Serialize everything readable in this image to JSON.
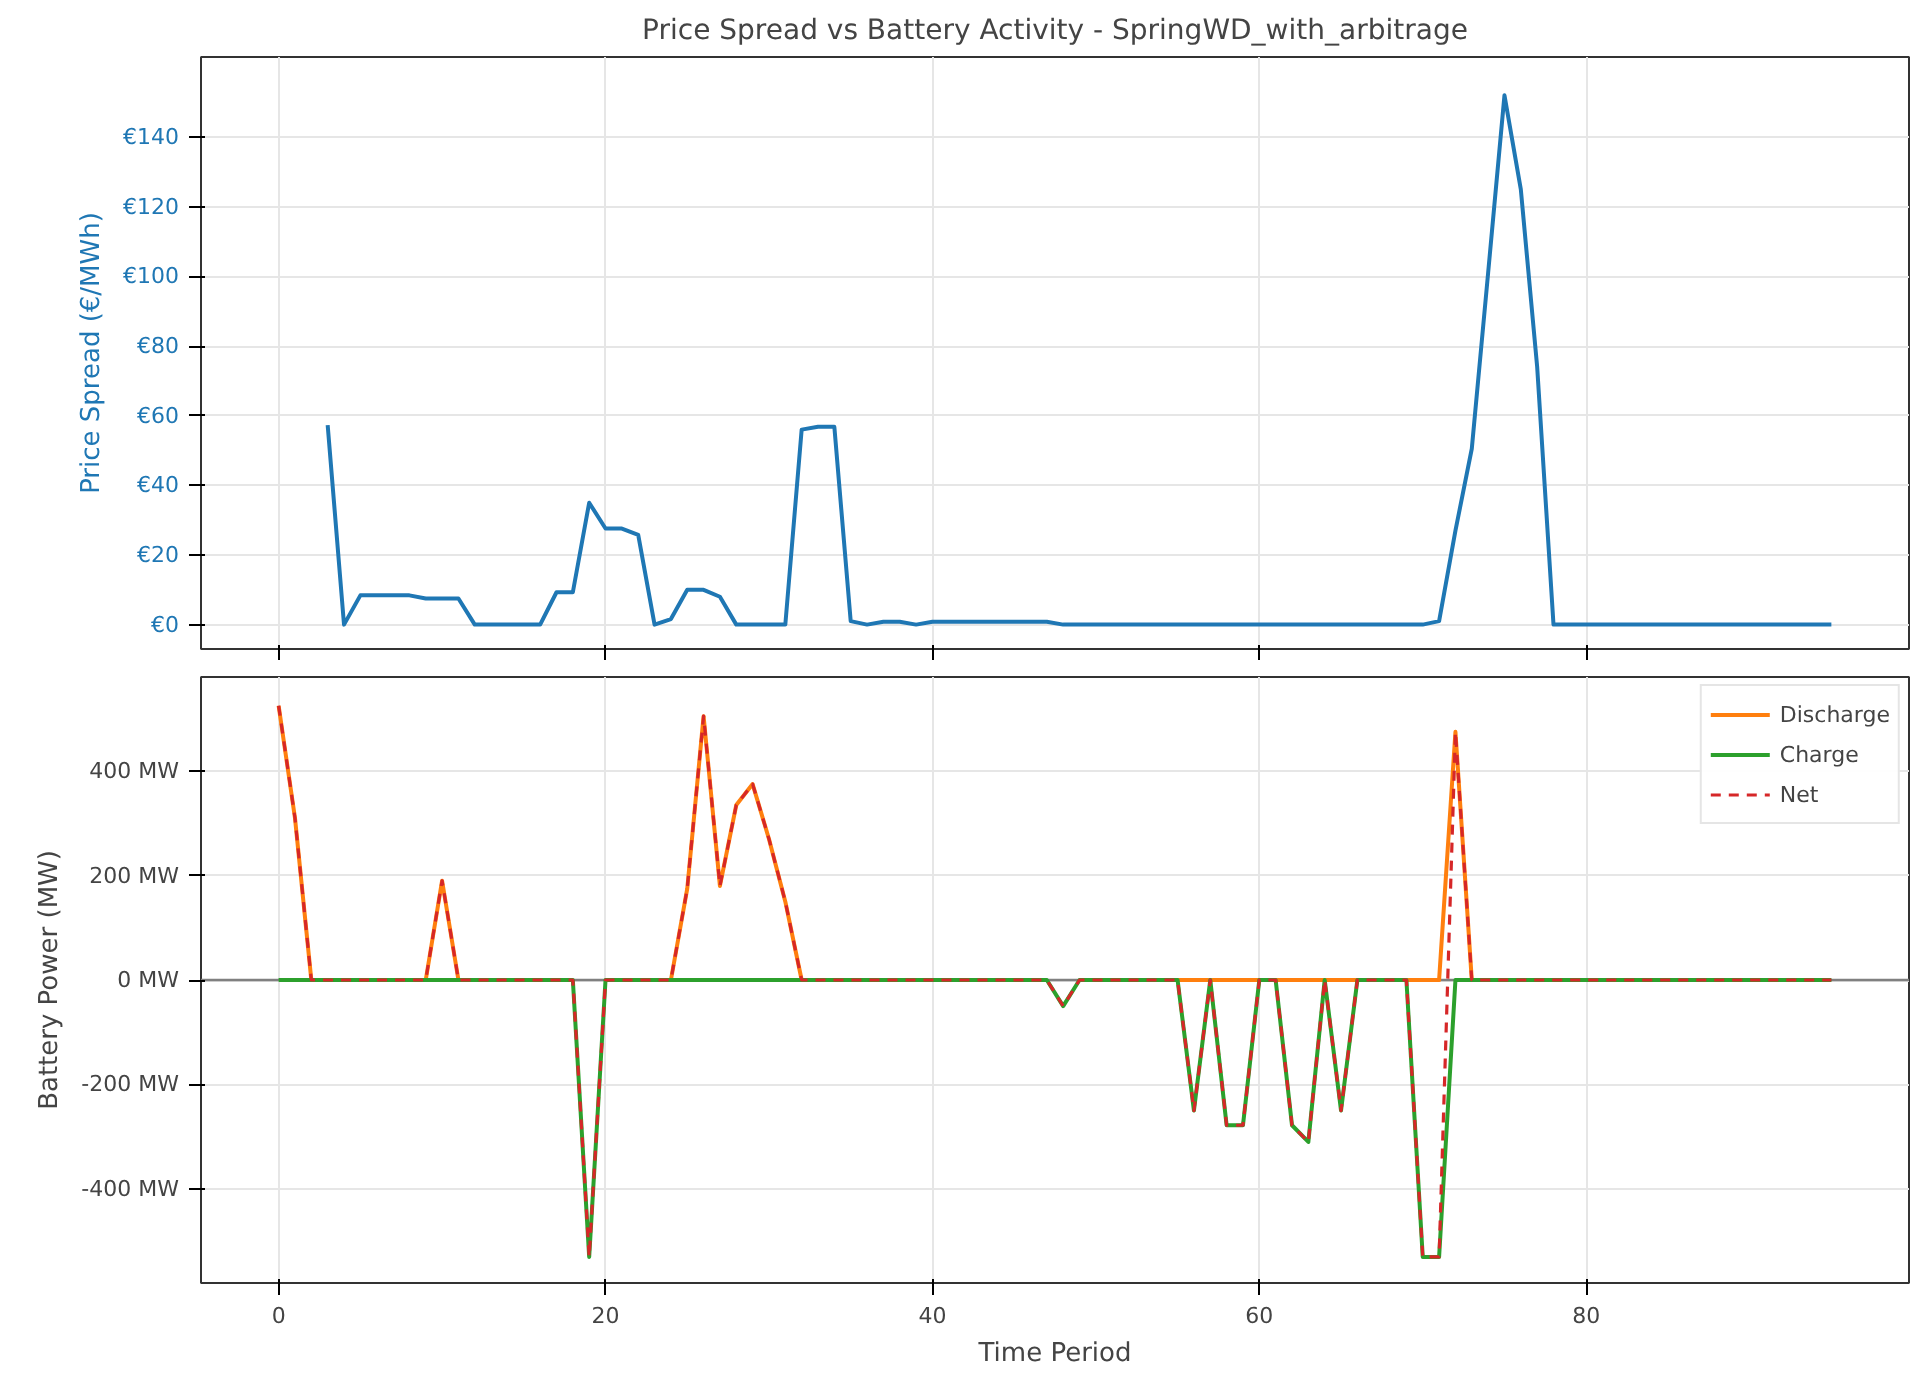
{
  "chart_data": [
    {
      "type": "line",
      "title": "Price Spread vs Battery Activity - SpringWD_with_arbitrage",
      "ylabel": "Price Spread (€/MWh)",
      "x": [
        3,
        4,
        5,
        6,
        7,
        8,
        9,
        10,
        11,
        12,
        13,
        14,
        15,
        16,
        17,
        18,
        19,
        20,
        21,
        22,
        23,
        24,
        25,
        26,
        27,
        28,
        29,
        30,
        31,
        32,
        33,
        34,
        35,
        36,
        37,
        38,
        39,
        40,
        41,
        42,
        43,
        44,
        45,
        46,
        47,
        48,
        49,
        50,
        51,
        52,
        53,
        54,
        55,
        56,
        57,
        58,
        59,
        60,
        61,
        62,
        63,
        64,
        65,
        66,
        67,
        68,
        69,
        70,
        71,
        72,
        73,
        74,
        75,
        76,
        77,
        78,
        79,
        80,
        81,
        82,
        83,
        84,
        85,
        86,
        87,
        88,
        89,
        90,
        91,
        92,
        93,
        94,
        95
      ],
      "series": [
        {
          "color": "#1f77b4",
          "values": [
            57.3,
            0,
            8.4,
            8.4,
            8.4,
            8.4,
            7.5,
            7.5,
            7.5,
            0,
            0,
            0,
            0,
            0,
            9.3,
            9.3,
            35,
            27.6,
            27.6,
            25.8,
            0,
            1.6,
            10,
            10,
            8,
            0,
            0,
            0,
            0,
            56,
            56.8,
            56.8,
            1,
            0,
            0.8,
            0.8,
            0,
            0.8,
            0.8,
            0.8,
            0.8,
            0.8,
            0.8,
            0.8,
            0.8,
            0,
            0,
            0,
            0,
            0,
            0,
            0,
            0,
            0,
            0,
            0,
            0,
            0,
            0,
            0,
            0,
            0,
            0,
            0,
            0,
            0,
            0,
            0,
            1,
            27,
            50.5,
            101,
            152,
            125,
            74,
            0,
            0,
            0,
            0,
            0,
            0,
            0,
            0,
            0,
            0,
            0,
            0,
            0,
            0,
            0,
            0,
            0,
            0
          ]
        }
      ],
      "xlim": [
        -4.75,
        99.75
      ],
      "xticks": [
        0,
        20,
        40,
        60,
        80
      ],
      "ylim": [
        -7,
        163
      ],
      "yticks": [
        {
          "value": 0,
          "label": "€0"
        },
        {
          "value": 20,
          "label": "€20"
        },
        {
          "value": 40,
          "label": "€40"
        },
        {
          "value": 60,
          "label": "€60"
        },
        {
          "value": 80,
          "label": "€80"
        },
        {
          "value": 100,
          "label": "€100"
        },
        {
          "value": 120,
          "label": "€120"
        },
        {
          "value": 140,
          "label": "€140"
        }
      ],
      "tick_labels": "y",
      "grid": true,
      "line_style": "solid"
    },
    {
      "type": "line",
      "xlabel": "Time Period",
      "ylabel": "Battery Power (MW)",
      "x": [
        0,
        1,
        2,
        3,
        4,
        5,
        6,
        7,
        8,
        9,
        10,
        11,
        12,
        13,
        14,
        15,
        16,
        17,
        18,
        19,
        20,
        21,
        22,
        23,
        24,
        25,
        26,
        27,
        28,
        29,
        30,
        31,
        32,
        33,
        34,
        35,
        36,
        37,
        38,
        39,
        40,
        41,
        42,
        43,
        44,
        45,
        46,
        47,
        48,
        49,
        50,
        51,
        52,
        53,
        54,
        55,
        56,
        57,
        58,
        59,
        60,
        61,
        62,
        63,
        64,
        65,
        66,
        67,
        68,
        69,
        70,
        71,
        72,
        73,
        74,
        75,
        76,
        77,
        78,
        79,
        80,
        81,
        82,
        83,
        84,
        85,
        86,
        87,
        88,
        89,
        90,
        91,
        92,
        93,
        94,
        95
      ],
      "series": [
        {
          "name": "Discharge",
          "color": "#ff7f0e",
          "line_style": "solid",
          "values": [
            525,
            310,
            0,
            null,
            null,
            null,
            null,
            null,
            null,
            0,
            190,
            0,
            null,
            null,
            null,
            null,
            null,
            null,
            null,
            null,
            null,
            null,
            null,
            null,
            0,
            175,
            505,
            180,
            335,
            375,
            270,
            150,
            0,
            null,
            null,
            null,
            null,
            null,
            null,
            null,
            null,
            null,
            null,
            null,
            null,
            null,
            null,
            null,
            null,
            null,
            null,
            null,
            null,
            null,
            null,
            0,
            0,
            0,
            0,
            0,
            0,
            0,
            0,
            0,
            0,
            0,
            0,
            null,
            null,
            0,
            0,
            0,
            475,
            0,
            null,
            null,
            null,
            null,
            null,
            null,
            null,
            null,
            null,
            null,
            null,
            null,
            null,
            null,
            null,
            null,
            null,
            null,
            null,
            null,
            null,
            null
          ]
        },
        {
          "name": "Charge",
          "color": "#2ca02c",
          "line_style": "solid",
          "values": [
            0,
            0,
            0,
            0,
            0,
            0,
            0,
            0,
            0,
            0,
            0,
            0,
            0,
            0,
            0,
            0,
            0,
            0,
            0,
            -530,
            0,
            0,
            0,
            0,
            0,
            0,
            0,
            0,
            0,
            0,
            0,
            0,
            0,
            0,
            0,
            0,
            0,
            0,
            0,
            0,
            0,
            0,
            0,
            0,
            0,
            0,
            0,
            0,
            -50,
            0,
            0,
            0,
            0,
            0,
            0,
            0,
            -250,
            0,
            -278,
            -278,
            0,
            0,
            -278,
            -310,
            0,
            -250,
            0,
            0,
            0,
            0,
            -530,
            -530,
            0,
            0,
            0,
            0,
            0,
            0,
            0,
            0,
            0,
            0,
            0,
            0,
            0,
            0,
            0,
            0,
            0,
            0,
            0,
            0,
            0,
            0,
            0,
            0
          ]
        },
        {
          "name": "Net",
          "color": "#d62728",
          "line_style": "dashed",
          "values": [
            525,
            310,
            0,
            0,
            0,
            0,
            0,
            0,
            0,
            0,
            190,
            0,
            0,
            0,
            0,
            0,
            0,
            0,
            0,
            -530,
            0,
            0,
            0,
            0,
            0,
            175,
            505,
            180,
            335,
            375,
            270,
            150,
            0,
            0,
            0,
            0,
            0,
            0,
            0,
            0,
            0,
            0,
            0,
            0,
            0,
            0,
            0,
            0,
            -50,
            0,
            0,
            0,
            0,
            0,
            0,
            0,
            -250,
            0,
            -278,
            -278,
            0,
            0,
            -278,
            -310,
            0,
            -250,
            0,
            0,
            0,
            0,
            -530,
            -530,
            475,
            0,
            0,
            0,
            0,
            0,
            0,
            0,
            0,
            0,
            0,
            0,
            0,
            0,
            0,
            0,
            0,
            0,
            0,
            0,
            0,
            0,
            0,
            0
          ]
        }
      ],
      "xlim": [
        -4.75,
        99.75
      ],
      "xticks": [
        0,
        20,
        40,
        60,
        80
      ],
      "ylim": [
        -580,
        580
      ],
      "yticks": [
        {
          "value": -400,
          "label": "-400 MW"
        },
        {
          "value": -200,
          "label": "-200 MW"
        },
        {
          "value": 0,
          "label": "0 MW"
        },
        {
          "value": 200,
          "label": "200 MW"
        },
        {
          "value": 400,
          "label": "400 MW"
        }
      ],
      "ref_lines": [
        {
          "axis": "y",
          "value": 0,
          "color": "#808080"
        }
      ],
      "grid": true,
      "legend": "top right"
    }
  ]
}
